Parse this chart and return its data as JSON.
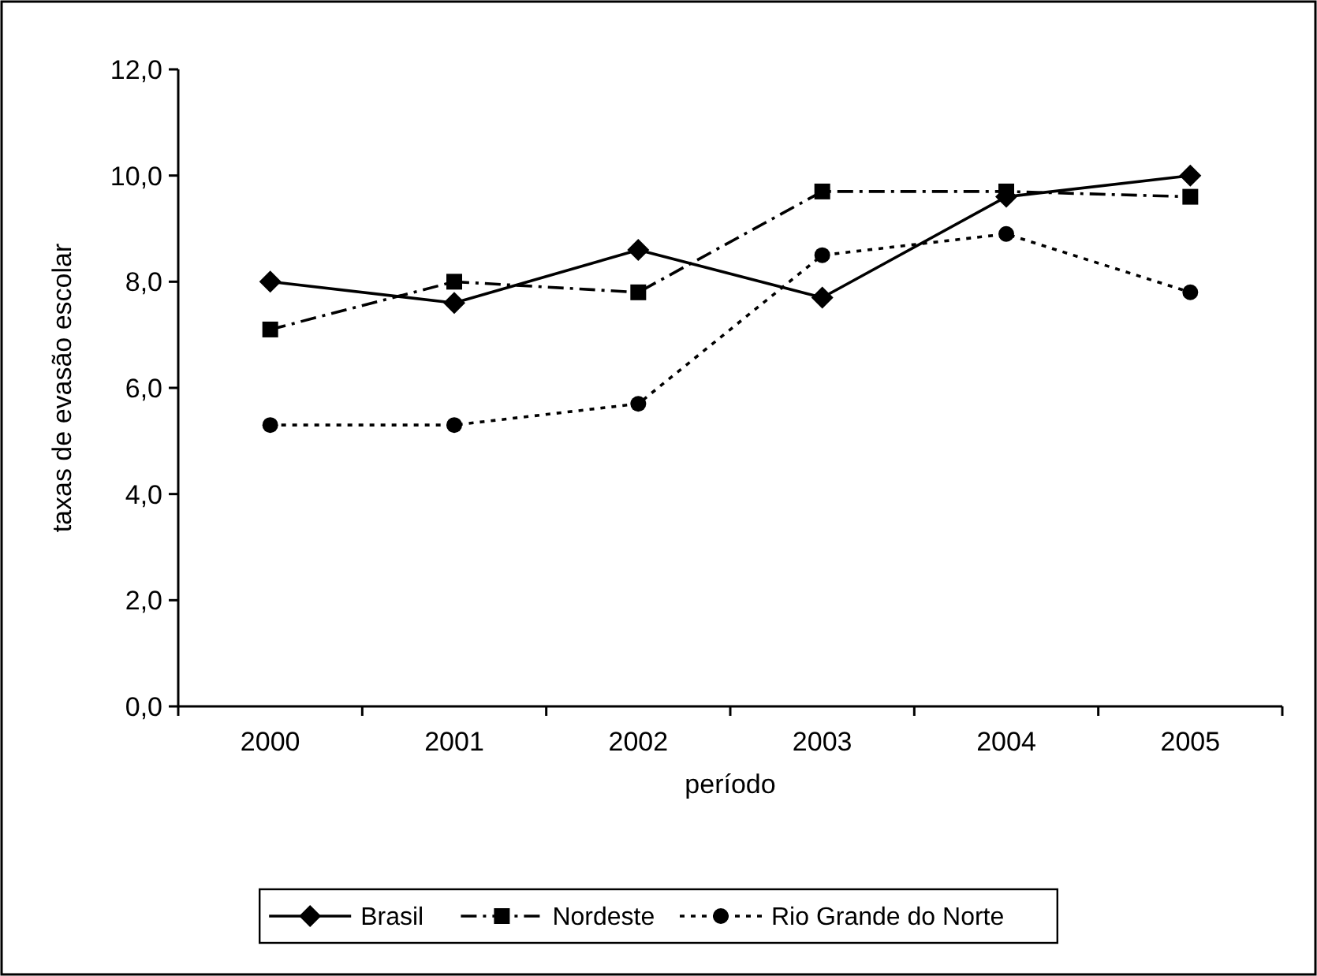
{
  "chart_data": {
    "type": "line",
    "xlabel": "período",
    "ylabel": "taxas de evasão escolar",
    "categories": [
      "2000",
      "2001",
      "2002",
      "2003",
      "2004",
      "2005"
    ],
    "ylim": [
      0,
      12
    ],
    "yticks": [
      {
        "value": 0,
        "label": "0,0"
      },
      {
        "value": 2,
        "label": "2,0"
      },
      {
        "value": 4,
        "label": "4,0"
      },
      {
        "value": 6,
        "label": "6,0"
      },
      {
        "value": 8,
        "label": "8,0"
      },
      {
        "value": 10,
        "label": "10,0"
      },
      {
        "value": 12,
        "label": "12,0"
      }
    ],
    "grid": false,
    "legend": "bottom",
    "series": [
      {
        "name": "Brasil",
        "color": "#000000",
        "marker": "diamond",
        "line_style": "solid",
        "values": [
          8.0,
          7.6,
          8.6,
          7.7,
          9.6,
          10.0
        ]
      },
      {
        "name": "Nordeste",
        "color": "#000000",
        "marker": "square",
        "line_style": "dashdot",
        "values": [
          7.1,
          8.0,
          7.8,
          9.7,
          9.7,
          9.6
        ]
      },
      {
        "name": "Rio Grande do Norte",
        "color": "#000000",
        "marker": "circle",
        "line_style": "dotted",
        "values": [
          5.3,
          5.3,
          5.7,
          8.5,
          8.9,
          7.8
        ]
      }
    ]
  }
}
